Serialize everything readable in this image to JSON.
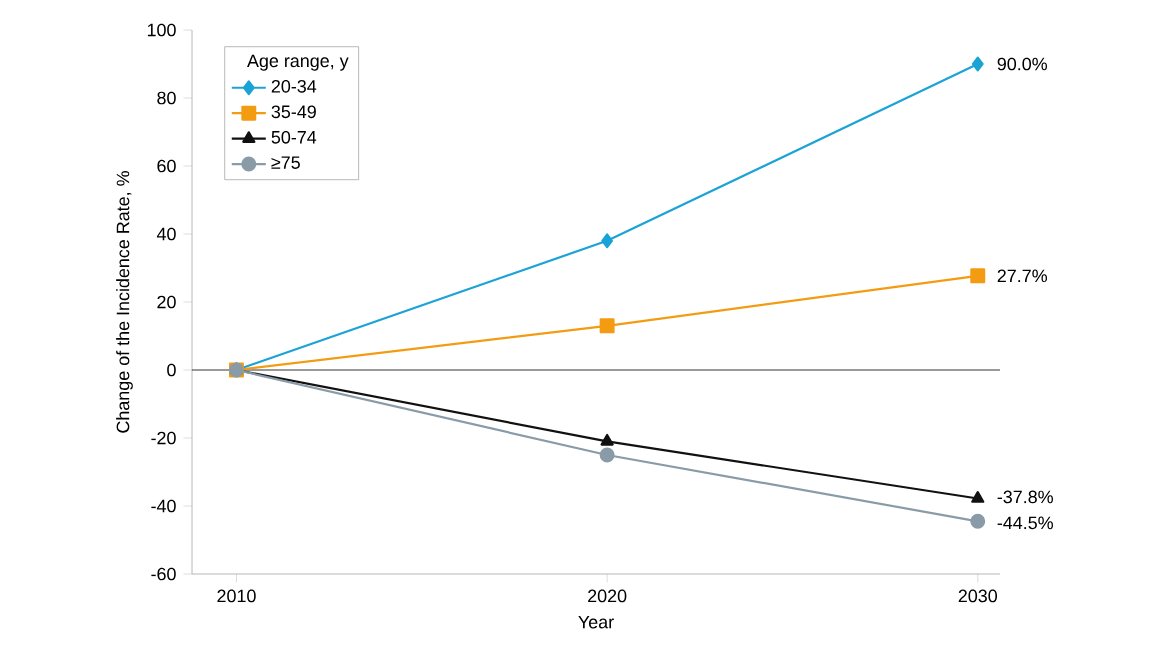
{
  "chart_data": {
    "type": "line",
    "xlabel": "Year",
    "ylabel": "Change of the Incidence Rate, %",
    "legend_title": "Age range, y",
    "x": [
      2010,
      2020,
      2030
    ],
    "xlim": [
      2008.8,
      2030.6
    ],
    "xticks": [
      2010,
      2020,
      2030
    ],
    "ylim": [
      -60,
      100
    ],
    "yticks": [
      -60,
      -40,
      -20,
      0,
      20,
      40,
      60,
      80,
      100
    ],
    "series": [
      {
        "name": "20-34",
        "color": "#1ba3d6",
        "marker": "diamond",
        "values": [
          0,
          38,
          90
        ],
        "value_labels": [
          null,
          null,
          "90.0%"
        ]
      },
      {
        "name": "35-49",
        "color": "#f39c12",
        "marker": "square",
        "values": [
          0,
          13,
          27.7
        ],
        "value_labels": [
          null,
          null,
          "27.7%"
        ]
      },
      {
        "name": "50-74",
        "color": "#111111",
        "marker": "triangle",
        "values": [
          0,
          -21,
          -37.8
        ],
        "value_labels": [
          null,
          null,
          "-37.8%"
        ]
      },
      {
        "name": "≥75",
        "color": "#8a9ba8",
        "marker": "circle",
        "values": [
          0,
          -25,
          -44.5
        ],
        "value_labels": [
          null,
          null,
          "-44.5%"
        ]
      }
    ],
    "ref_lines": [
      {
        "axis": "y",
        "value": 0,
        "color": "#000000"
      }
    ],
    "legend": "top left",
    "grid": false,
    "line_style": "solid"
  }
}
